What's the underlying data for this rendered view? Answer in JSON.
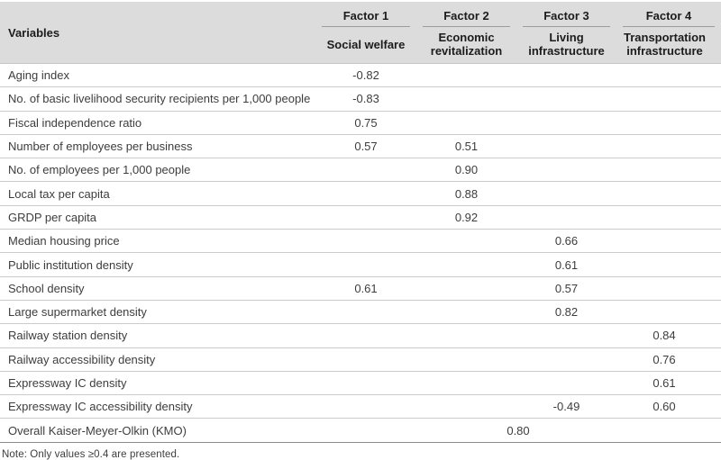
{
  "table": {
    "variables_label": "Variables",
    "factors": [
      {
        "id": "Factor 1",
        "name": "Social welfare"
      },
      {
        "id": "Factor 2",
        "name": "Economic revitalization"
      },
      {
        "id": "Factor 3",
        "name": "Living infrastructure"
      },
      {
        "id": "Factor 4",
        "name": "Transportation infrastructure"
      }
    ],
    "rows": [
      {
        "label": "Aging index",
        "f1": "-0.82",
        "f2": "",
        "f3": "",
        "f4": ""
      },
      {
        "label": "No. of basic livelihood security recipients per 1,000 people",
        "f1": "-0.83",
        "f2": "",
        "f3": "",
        "f4": ""
      },
      {
        "label": "Fiscal independence ratio",
        "f1": "0.75",
        "f2": "",
        "f3": "",
        "f4": ""
      },
      {
        "label": "Number of employees per business",
        "f1": "0.57",
        "f2": "0.51",
        "f3": "",
        "f4": ""
      },
      {
        "label": "No. of employees per 1,000 people",
        "f1": "",
        "f2": "0.90",
        "f3": "",
        "f4": ""
      },
      {
        "label": "Local tax per capita",
        "f1": "",
        "f2": "0.88",
        "f3": "",
        "f4": ""
      },
      {
        "label": "GRDP per capita",
        "f1": "",
        "f2": "0.92",
        "f3": "",
        "f4": ""
      },
      {
        "label": "Median housing price",
        "f1": "",
        "f2": "",
        "f3": "0.66",
        "f4": ""
      },
      {
        "label": "Public institution density",
        "f1": "",
        "f2": "",
        "f3": "0.61",
        "f4": ""
      },
      {
        "label": "School density",
        "f1": "0.61",
        "f2": "",
        "f3": "0.57",
        "f4": ""
      },
      {
        "label": "Large supermarket density",
        "f1": "",
        "f2": "",
        "f3": "0.82",
        "f4": ""
      },
      {
        "label": "Railway station density",
        "f1": "",
        "f2": "",
        "f3": "",
        "f4": "0.84"
      },
      {
        "label": "Railway accessibility density",
        "f1": "",
        "f2": "",
        "f3": "",
        "f4": "0.76"
      },
      {
        "label": "Expressway IC density",
        "f1": "",
        "f2": "",
        "f3": "",
        "f4": "0.61"
      },
      {
        "label": "Expressway IC accessibility density",
        "f1": "",
        "f2": "",
        "f3": "-0.49",
        "f4": "0.60"
      }
    ],
    "kmo": {
      "label": "Overall Kaiser-Meyer-Olkin (KMO)",
      "value": "0.80"
    },
    "note": "Note: Only values ≥0.4 are presented."
  },
  "colors": {
    "header_bg": "#dcdcdc",
    "factor_underline": "#9c9c9c",
    "row_divider": "#cbcbcb",
    "bottom_rule": "#8c8c8c",
    "text": "#3d3d3d",
    "header_text": "#1c1c1c"
  }
}
